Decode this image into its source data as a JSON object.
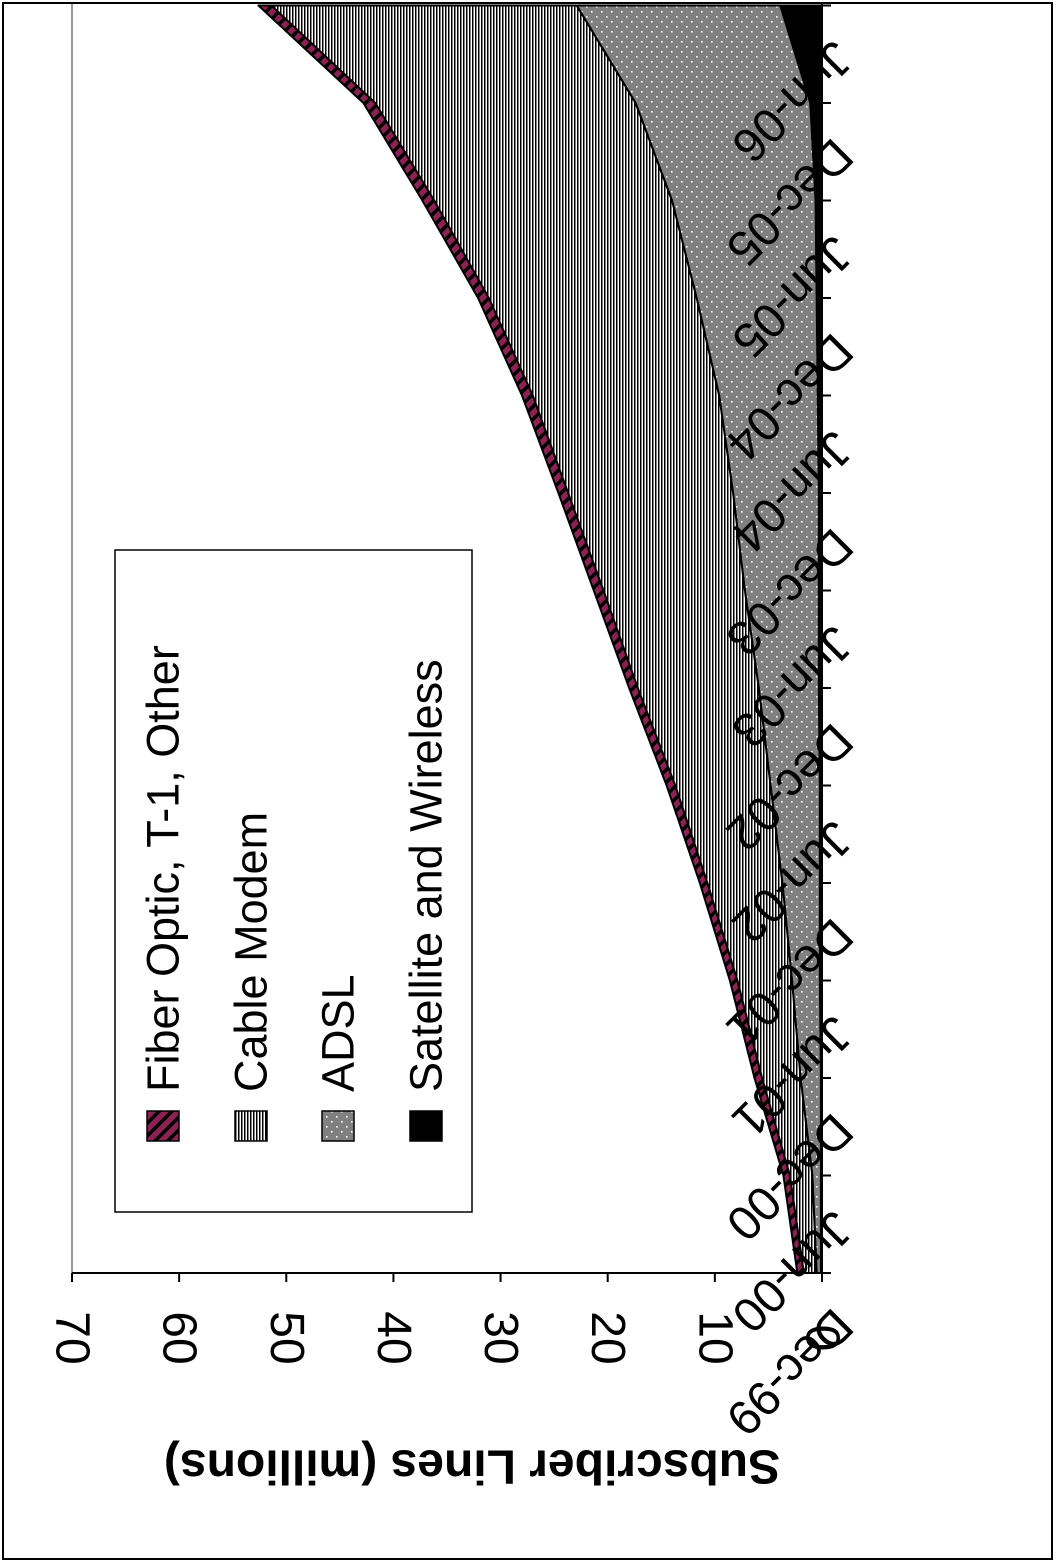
{
  "chart_data": {
    "type": "area",
    "stacked": true,
    "orientation": "rotated-90-clockwise",
    "title": "",
    "ylabel": "Subscriber Lines (millions)",
    "xlabel": "",
    "ylim": [
      0,
      70
    ],
    "yticks": [
      0,
      10,
      20,
      30,
      40,
      50,
      60,
      70
    ],
    "grid": false,
    "legend_position": "top-left",
    "x": [
      "Dec-99",
      "Jun-00",
      "Dec-00",
      "Jun-01",
      "Dec-01",
      "Jun-02",
      "Dec-02",
      "Jun-03",
      "Dec-03",
      "Jun-04",
      "Dec-04",
      "Jun-05",
      "Dec-05",
      "Jun-06"
    ],
    "series": [
      {
        "name": "Satellite and Wireless",
        "pattern": "solid",
        "color": "#000000",
        "values": [
          0.1,
          0.1,
          0.1,
          0.2,
          0.2,
          0.2,
          0.3,
          0.3,
          0.3,
          0.4,
          0.5,
          0.6,
          1.1,
          3.9
        ]
      },
      {
        "name": "ADSL",
        "pattern": "dots",
        "color": "#808080",
        "values": [
          0.4,
          0.8,
          1.9,
          2.6,
          3.5,
          4.6,
          5.6,
          6.9,
          8.0,
          9.2,
          11.2,
          13.4,
          16.3,
          19.0
        ]
      },
      {
        "name": "Cable Modem",
        "pattern": "horizontal-lines",
        "color": "#000000",
        "values": [
          1.2,
          2.1,
          3.6,
          5.1,
          7.0,
          8.9,
          11.3,
          13.2,
          15.4,
          17.4,
          19.4,
          22.2,
          24.3,
          28.5
        ]
      },
      {
        "name": "Fiber Optic, T-1, Other",
        "pattern": "diagonal-hatch",
        "color": "#8b2252",
        "values": [
          0.6,
          0.6,
          0.7,
          0.7,
          0.7,
          0.8,
          0.8,
          0.9,
          0.9,
          1.0,
          1.0,
          1.1,
          1.1,
          1.2
        ]
      }
    ]
  }
}
